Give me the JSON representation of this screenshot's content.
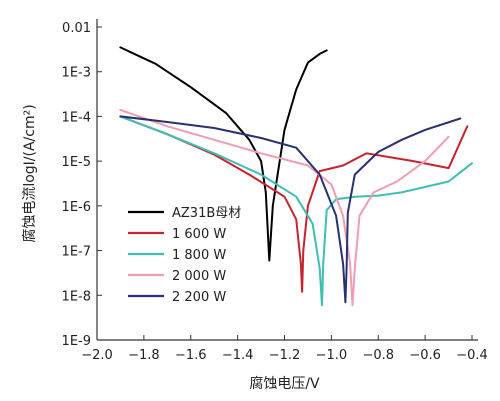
{
  "chart_data": {
    "type": "line",
    "xlabel": "腐蚀电压/V",
    "ylabel": "腐蚀电流logI/(A/cm²)",
    "xlim": [
      -2.0,
      -0.4
    ],
    "ylim": [
      1e-09,
      0.01
    ],
    "yscale": "log",
    "xticks": [
      -2.0,
      -1.8,
      -1.6,
      -1.4,
      -1.2,
      -1.0,
      -0.8,
      -0.6,
      -0.4
    ],
    "xtick_labels": [
      "−2.0",
      "−1.8",
      "−1.6",
      "−1.4",
      "−1.2",
      "−1.0",
      "−0.8",
      "−0.6",
      "−0.4"
    ],
    "yticks": [
      1e-09,
      1e-08,
      1e-07,
      1e-06,
      1e-05,
      0.0001,
      0.001,
      0.01
    ],
    "ytick_labels": [
      "1E-9",
      "1E-8",
      "1E-7",
      "1E-6",
      "1E-5",
      "1E-4",
      "1E-3",
      "0.01"
    ],
    "grid": false,
    "legend": "lower-left",
    "series": [
      {
        "name": "AZ31B母材",
        "color": "#000000",
        "x": [
          -1.9,
          -1.75,
          -1.6,
          -1.45,
          -1.35,
          -1.3,
          -1.28,
          -1.27,
          -1.265,
          -1.25,
          -1.2,
          -1.15,
          -1.1,
          -1.05,
          -1.02
        ],
        "y": [
          0.0035,
          0.0015,
          0.00045,
          0.00012,
          3e-05,
          1e-05,
          2e-06,
          2e-07,
          6e-08,
          1e-06,
          5e-05,
          0.0004,
          0.0016,
          0.0025,
          0.003
        ]
      },
      {
        "name": "1 600 W",
        "color": "#c8232c",
        "x": [
          -1.9,
          -1.7,
          -1.5,
          -1.35,
          -1.2,
          -1.15,
          -1.13,
          -1.125,
          -1.12,
          -1.1,
          -1.05,
          -0.95,
          -0.85,
          -0.65,
          -0.5,
          -0.42
        ],
        "y": [
          0.0001,
          4e-05,
          1.4e-05,
          5e-06,
          1.6e-06,
          5e-07,
          5e-08,
          1.2e-08,
          1e-07,
          1e-06,
          6e-06,
          8e-06,
          1.5e-05,
          1e-05,
          7e-06,
          6e-05
        ]
      },
      {
        "name": "1 800 W",
        "color": "#3dbfb4",
        "x": [
          -1.9,
          -1.7,
          -1.5,
          -1.3,
          -1.15,
          -1.08,
          -1.05,
          -1.04,
          -1.035,
          -1.02,
          -0.98,
          -0.9,
          -0.8,
          -0.7,
          -0.5,
          -0.4
        ],
        "y": [
          0.0001,
          4e-05,
          1.5e-05,
          5e-06,
          1.6e-06,
          4e-07,
          4e-08,
          6e-09,
          5e-08,
          8e-07,
          1.4e-06,
          1.6e-06,
          1.7e-06,
          2e-06,
          3.5e-06,
          9e-06
        ]
      },
      {
        "name": "2 000 W",
        "color": "#f29cb0",
        "x": [
          -1.9,
          -1.7,
          -1.5,
          -1.3,
          -1.1,
          -1.0,
          -0.95,
          -0.92,
          -0.91,
          -0.9,
          -0.88,
          -0.82,
          -0.72,
          -0.6,
          -0.5
        ],
        "y": [
          0.00014,
          6e-05,
          3e-05,
          1.5e-05,
          8e-06,
          3e-06,
          6e-07,
          5e-08,
          6e-09,
          4e-08,
          6e-07,
          2e-06,
          3.5e-06,
          1e-05,
          3.5e-05
        ]
      },
      {
        "name": "2 200 W",
        "color": "#2b2f73",
        "x": [
          -1.9,
          -1.7,
          -1.5,
          -1.3,
          -1.15,
          -1.05,
          -0.98,
          -0.95,
          -0.94,
          -0.935,
          -0.93,
          -0.9,
          -0.8,
          -0.7,
          -0.6,
          -0.45
        ],
        "y": [
          0.0001,
          7.5e-05,
          5.5e-05,
          3.3e-05,
          2e-05,
          5e-06,
          6e-07,
          5e-08,
          7e-09,
          4e-08,
          7e-07,
          5e-06,
          1.6e-05,
          3e-05,
          5e-05,
          9e-05
        ]
      }
    ]
  }
}
